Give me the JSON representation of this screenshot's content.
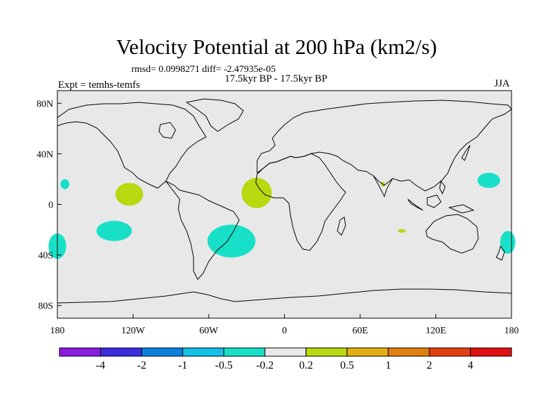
{
  "title": "Velocity Potential at 200 hPa (km2/s)",
  "stats": "rmsd= 0.0998271  diff= -2.47935e-05",
  "period": "17.5kyr BP - 17.5kyr BP",
  "experiment": "Expt = temhs-temfs",
  "season": "JJA",
  "axes": {
    "x_ticks": [
      {
        "label": "180",
        "lon": -180
      },
      {
        "label": "120W",
        "lon": -120
      },
      {
        "label": "60W",
        "lon": -60
      },
      {
        "label": "0",
        "lon": 0
      },
      {
        "label": "60E",
        "lon": 60
      },
      {
        "label": "120E",
        "lon": 120
      },
      {
        "label": "180",
        "lon": 180
      }
    ],
    "y_ticks": [
      {
        "label": "80N",
        "lat": 80
      },
      {
        "label": "40N",
        "lat": 40
      },
      {
        "label": "0",
        "lat": 0
      },
      {
        "label": "40S",
        "lat": -40
      },
      {
        "label": "80S",
        "lat": -80
      }
    ]
  },
  "colorbar": {
    "colors": [
      "#8a1ce0",
      "#3a2ee0",
      "#0c80e0",
      "#14c0e8",
      "#18e0c8",
      "#e8e8e8",
      "#b8d810",
      "#e0b010",
      "#e08010",
      "#e04010",
      "#e01010"
    ],
    "labels": [
      "-4",
      "-2",
      "-1",
      "-0.5",
      "-0.2",
      "0.2",
      "0.5",
      "1",
      "2",
      "4"
    ]
  },
  "chart_data": {
    "type": "contour-map",
    "title": "Velocity Potential at 200 hPa (km2/s)",
    "units": "km2/s",
    "projection": "cylindrical equidistant",
    "lon_range": [
      -180,
      180
    ],
    "lat_range": [
      -90,
      90
    ],
    "background_level": "-0.2 to 0.2",
    "anomaly_regions": [
      {
        "name": "central-pacific-positive",
        "level": "0.2 to 0.5",
        "lon": -123,
        "lat": 8,
        "dlon": 11,
        "dlat": 9
      },
      {
        "name": "tropical-atlantic-positive",
        "level": "0.2 to 0.5",
        "lon": -22,
        "lat": 9,
        "dlon": 12,
        "dlat": 12
      },
      {
        "name": "india-positive",
        "level": "0.2 to 0.5",
        "lon": 78,
        "lat": 16,
        "dlon": 1.5,
        "dlat": 2
      },
      {
        "name": "indian-ocean-positive",
        "level": "0.2 to 0.5",
        "lon": 93,
        "lat": -21,
        "dlon": 3,
        "dlat": 1.5
      },
      {
        "name": "east-pacific-negative",
        "level": "-0.5 to -0.2",
        "lon": -174,
        "lat": 16,
        "dlon": 3.5,
        "dlat": 4
      },
      {
        "name": "south-pacific-negative",
        "level": "-0.5 to -0.2",
        "lon": -135,
        "lat": -21,
        "dlon": 14,
        "dlat": 8
      },
      {
        "name": "south-america-negative",
        "level": "-0.5 to -0.2",
        "lon": -42,
        "lat": -29,
        "dlon": 19,
        "dlat": 13
      },
      {
        "name": "west-edge-negative",
        "level": "-0.5 to -0.2",
        "lon": -180,
        "lat": -33,
        "dlon": 7,
        "dlat": 10
      },
      {
        "name": "western-pacific-negative",
        "level": "-0.5 to -0.2",
        "lon": 162,
        "lat": 19,
        "dlon": 9,
        "dlat": 6
      },
      {
        "name": "new-zealand-negative",
        "level": "-0.5 to -0.2",
        "lon": 177,
        "lat": -30,
        "dlon": 6,
        "dlat": 9
      }
    ]
  }
}
